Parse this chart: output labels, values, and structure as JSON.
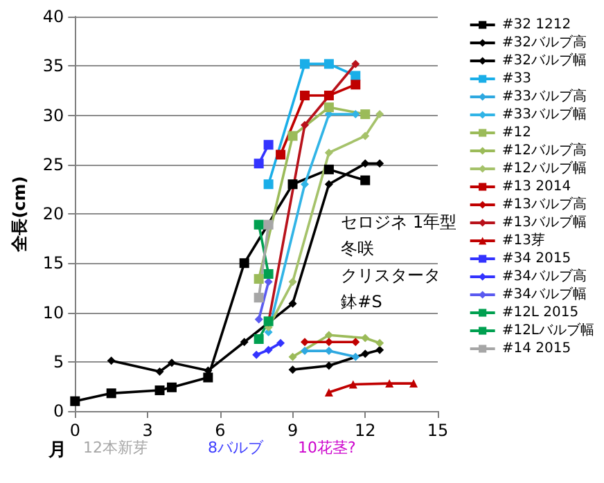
{
  "chart_data": {
    "type": "line",
    "ylabel": "全長(cm)",
    "xlabel": "月",
    "xlim": [
      0,
      15
    ],
    "xticks": [
      0,
      3,
      6,
      9,
      12,
      15
    ],
    "ylim": [
      0,
      40
    ],
    "yticks": [
      0,
      5,
      10,
      15,
      20,
      25,
      30,
      35,
      40
    ],
    "grid": "y",
    "legend": "right",
    "line_style": "solid",
    "annotations": [
      "セロジネ 1年型",
      "冬咲",
      "クリスタータ",
      "鉢#S",
      "8バルブ",
      "10花茎?",
      "12本新芽"
    ],
    "series": [
      {
        "name": "#32 1212",
        "color": "#000000",
        "marker": "square",
        "x": [
          0,
          1.5,
          3.5,
          4,
          5.5,
          7,
          9,
          10.5,
          12
        ],
        "values": [
          1,
          1.8,
          2.1,
          2.4,
          3.4,
          15,
          23,
          24.5,
          23.4
        ]
      },
      {
        "name": "#32バルブ高",
        "color": "#000000",
        "marker": "diamond",
        "x": [
          9,
          10.5,
          12,
          12.6
        ],
        "values": [
          4.2,
          4.6,
          5.8,
          6.2
        ]
      },
      {
        "name": "#32バルブ幅",
        "color": "#000000",
        "marker": "diamond",
        "x": [
          1.5,
          3.5,
          4,
          5.5,
          7,
          9,
          10.5,
          12,
          12.6
        ],
        "values": [
          5.1,
          4,
          4.9,
          4.1,
          7,
          10.9,
          23,
          25.1,
          25.1
        ]
      },
      {
        "name": "#33",
        "color": "#1aaee8",
        "marker": "square",
        "x": [
          8,
          9.5,
          10.5,
          11.6
        ],
        "values": [
          23,
          35.2,
          35.2,
          34
        ]
      },
      {
        "name": "#33バルブ高",
        "color": "#2ea8e0",
        "marker": "diamond",
        "x": [
          9.5,
          10.5,
          11.6
        ],
        "values": [
          6.1,
          6.1,
          5.5
        ]
      },
      {
        "name": "#33バルブ幅",
        "color": "#31b4e6",
        "marker": "diamond",
        "x": [
          8,
          9.5,
          10.5,
          11.6
        ],
        "values": [
          8,
          23,
          30.1,
          30.1
        ]
      },
      {
        "name": "#12",
        "color": "#9bbb59",
        "marker": "square",
        "x": [
          7.6,
          9,
          10.5,
          12
        ],
        "values": [
          13.4,
          27.9,
          30.8,
          30.1
        ]
      },
      {
        "name": "#12バルブ高",
        "color": "#9bbb59",
        "marker": "diamond",
        "x": [
          9,
          10.5,
          12,
          12.6
        ],
        "values": [
          5.5,
          7.7,
          7.4,
          6.9
        ]
      },
      {
        "name": "#12バルブ幅",
        "color": "#a5c26a",
        "marker": "diamond",
        "x": [
          8,
          9,
          10.5,
          12,
          12.6
        ],
        "values": [
          8.5,
          13.1,
          26.2,
          27.9,
          30.1
        ]
      },
      {
        "name": "#13 2014",
        "color": "#c00000",
        "marker": "square",
        "x": [
          8.5,
          9.5,
          10.5,
          11.6
        ],
        "values": [
          26,
          32,
          32,
          33.1
        ]
      },
      {
        "name": "#13バルブ高",
        "color": "#c00000",
        "marker": "diamond",
        "x": [
          9.5,
          10.5,
          11.6
        ],
        "values": [
          7,
          7,
          7
        ]
      },
      {
        "name": "#13バルブ幅",
        "color": "#b8121b",
        "marker": "diamond",
        "x": [
          8,
          9.5,
          11.6
        ],
        "values": [
          9,
          29,
          35.2
        ]
      },
      {
        "name": "#13芽",
        "color": "#c00000",
        "marker": "triangle",
        "x": [
          10.5,
          11.5,
          13,
          14
        ],
        "values": [
          1.9,
          2.7,
          2.8,
          2.8
        ]
      },
      {
        "name": "#34 2015",
        "color": "#3333ff",
        "marker": "square",
        "x": [
          7.6,
          8
        ],
        "values": [
          25.1,
          27
        ]
      },
      {
        "name": "#34バルブ高",
        "color": "#3333ff",
        "marker": "diamond",
        "x": [
          7.5,
          8,
          8.5
        ],
        "values": [
          5.7,
          6.2,
          6.9
        ]
      },
      {
        "name": "#34バルブ幅",
        "color": "#5a5af0",
        "marker": "diamond",
        "x": [
          7.6,
          8
        ],
        "values": [
          9.3,
          13.1
        ]
      },
      {
        "name": "#12L 2015",
        "color": "#00a050",
        "marker": "square",
        "x": [
          7.6,
          8
        ],
        "values": [
          18.9,
          13.9
        ]
      },
      {
        "name": "#12Lバルブ幅",
        "color": "#00a050",
        "marker": "square",
        "x": [
          7.6,
          8
        ],
        "values": [
          7.3,
          9.1
        ]
      },
      {
        "name": "#14 2015",
        "color": "#a6a6a6",
        "marker": "square",
        "x": [
          8,
          7.6
        ],
        "values": [
          18.9,
          11.5
        ]
      }
    ]
  }
}
